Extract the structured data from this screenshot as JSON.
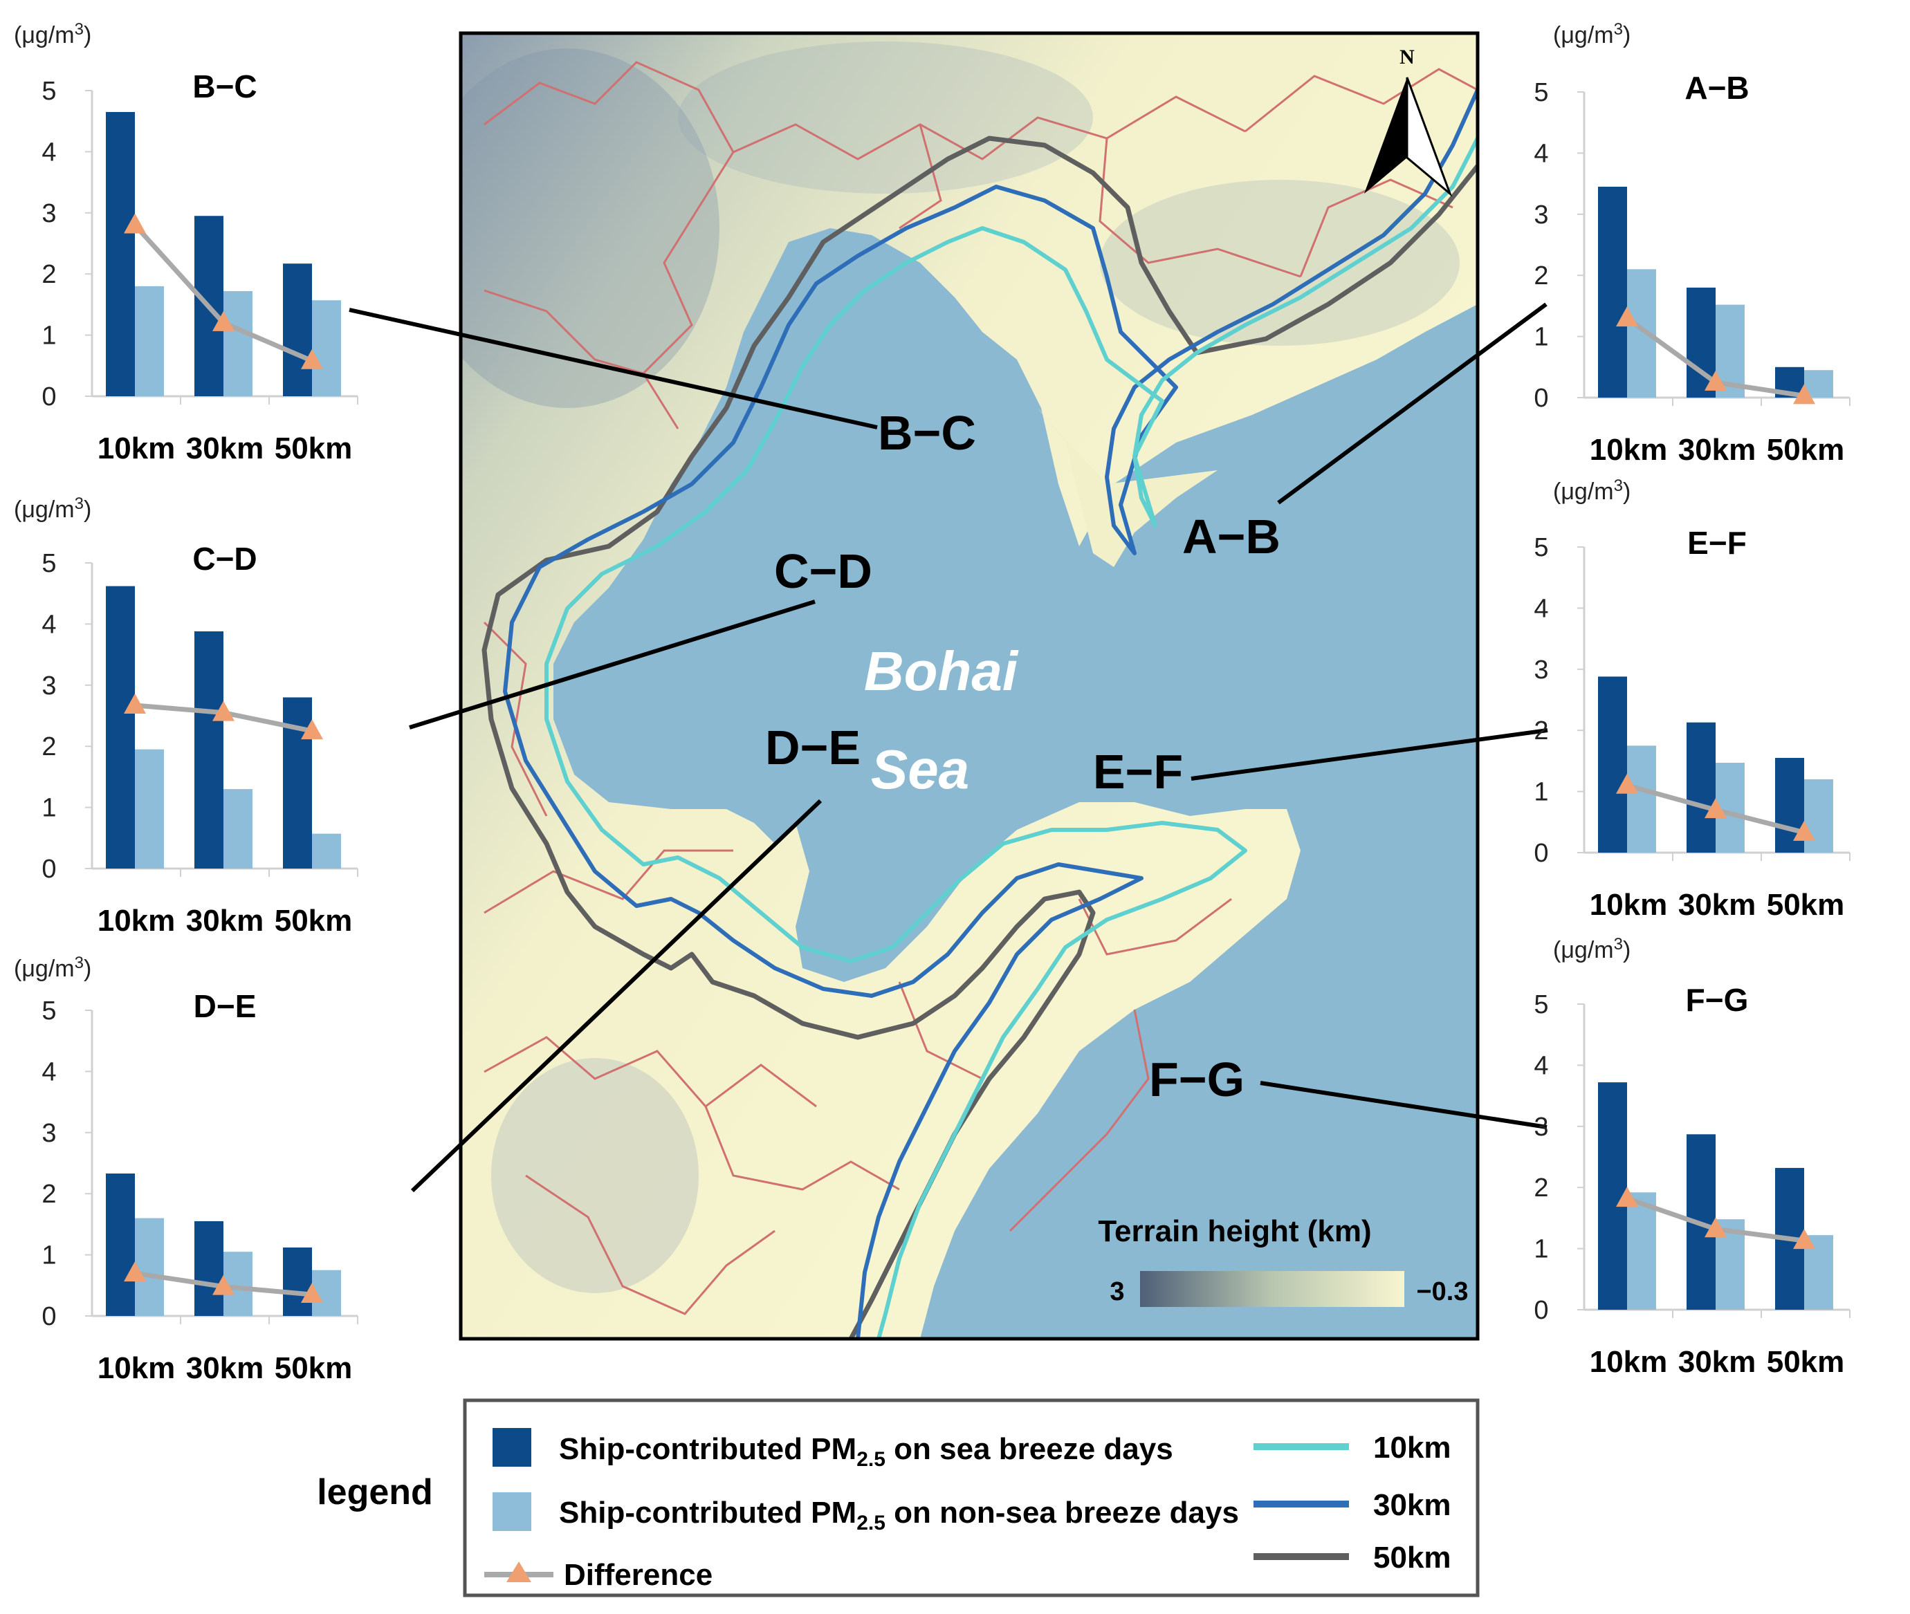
{
  "colors": {
    "sea_breeze": "#0c4a8a",
    "non_sea_breeze": "#8dbdd8",
    "difference_line": "#a9a9a9",
    "difference_marker": "#f0a070",
    "ring_10km": "#5fd0d0",
    "ring_30km": "#2e6eb8",
    "ring_50km": "#5f5f5f",
    "sea": "#8bb9d2",
    "land": "#f7f5cf",
    "boundary": "#d07070"
  },
  "map": {
    "sea_name_line1": "Bohai",
    "sea_name_line2": "Sea",
    "north_label": "N",
    "terrain_title": "Terrain height (km)",
    "terrain_max": "3",
    "terrain_min": "−0.3",
    "segment_labels": {
      "a_b": "A−B",
      "b_c": "B−C",
      "c_d": "C−D",
      "d_e": "D−E",
      "e_f": "E−F",
      "f_g": "F−G"
    }
  },
  "legend": {
    "title": "legend",
    "sea_breeze_pre": "Ship-contributed PM",
    "sea_breeze_sub": "2.5",
    "sea_breeze_post": " on sea breeze days",
    "non_sea_breeze_pre": "Ship-contributed PM",
    "non_sea_breeze_sub": "2.5",
    "non_sea_breeze_post": " on non-sea breeze days",
    "difference": "Difference",
    "ring_10km": "10km",
    "ring_30km": "30km",
    "ring_50km": "50km"
  },
  "chart_data": [
    {
      "type": "bar",
      "title": "B−C",
      "unit_pre": "(μg/m",
      "unit_sup": "3",
      "unit_post": ")",
      "categories": [
        "10km",
        "30km",
        "50km"
      ],
      "ylim": [
        0,
        5
      ],
      "yticks": [
        0,
        1,
        2,
        3,
        4,
        5
      ],
      "series": [
        {
          "name": "Ship-contributed PM2.5 on sea breeze days",
          "values": [
            4.65,
            2.95,
            2.17
          ]
        },
        {
          "name": "Ship-contributed PM2.5 on non-sea breeze days",
          "values": [
            1.8,
            1.72,
            1.57
          ]
        },
        {
          "name": "Difference",
          "type": "line",
          "values": [
            2.8,
            1.2,
            0.58
          ]
        }
      ]
    },
    {
      "type": "bar",
      "title": "C−D",
      "unit_pre": "(μg/m",
      "unit_sup": "3",
      "unit_post": ")",
      "categories": [
        "10km",
        "30km",
        "50km"
      ],
      "ylim": [
        0,
        5
      ],
      "yticks": [
        0,
        1,
        2,
        3,
        4,
        5
      ],
      "series": [
        {
          "name": "Ship-contributed PM2.5 on sea breeze days",
          "values": [
            4.62,
            3.88,
            2.8
          ]
        },
        {
          "name": "Ship-contributed PM2.5 on non-sea breeze days",
          "values": [
            1.95,
            1.3,
            0.57
          ]
        },
        {
          "name": "Difference",
          "type": "line",
          "values": [
            2.67,
            2.55,
            2.25
          ]
        }
      ]
    },
    {
      "type": "bar",
      "title": "D−E",
      "unit_pre": "(μg/m",
      "unit_sup": "3",
      "unit_post": ")",
      "categories": [
        "10km",
        "30km",
        "50km"
      ],
      "ylim": [
        0,
        5
      ],
      "yticks": [
        0,
        1,
        2,
        3,
        4,
        5
      ],
      "series": [
        {
          "name": "Ship-contributed PM2.5 on sea breeze days",
          "values": [
            2.33,
            1.55,
            1.12
          ]
        },
        {
          "name": "Ship-contributed PM2.5 on non-sea breeze days",
          "values": [
            1.6,
            1.05,
            0.75
          ]
        },
        {
          "name": "Difference",
          "type": "line",
          "values": [
            0.7,
            0.48,
            0.35
          ]
        }
      ]
    },
    {
      "type": "bar",
      "title": "A−B",
      "unit_pre": "(μg/m",
      "unit_sup": "3",
      "unit_post": ")",
      "categories": [
        "10km",
        "30km",
        "50km"
      ],
      "ylim": [
        0,
        5
      ],
      "yticks": [
        0,
        1,
        2,
        3,
        4,
        5
      ],
      "series": [
        {
          "name": "Ship-contributed PM2.5 on sea breeze days",
          "values": [
            3.45,
            1.8,
            0.5
          ]
        },
        {
          "name": "Ship-contributed PM2.5 on non-sea breeze days",
          "values": [
            2.1,
            1.52,
            0.45
          ]
        },
        {
          "name": "Difference",
          "type": "line",
          "values": [
            1.3,
            0.25,
            0.03
          ]
        }
      ]
    },
    {
      "type": "bar",
      "title": "E−F",
      "unit_pre": "(μg/m",
      "unit_sup": "3",
      "unit_post": ")",
      "categories": [
        "10km",
        "30km",
        "50km"
      ],
      "ylim": [
        0,
        5
      ],
      "yticks": [
        0,
        1,
        2,
        3,
        4,
        5
      ],
      "series": [
        {
          "name": "Ship-contributed PM2.5 on sea breeze days",
          "values": [
            2.88,
            2.13,
            1.55
          ]
        },
        {
          "name": "Ship-contributed PM2.5 on non-sea breeze days",
          "values": [
            1.75,
            1.47,
            1.2
          ]
        },
        {
          "name": "Difference",
          "type": "line",
          "values": [
            1.1,
            0.7,
            0.33
          ]
        }
      ]
    },
    {
      "type": "bar",
      "title": "F−G",
      "unit_pre": "(μg/m",
      "unit_sup": "3",
      "unit_post": ")",
      "categories": [
        "10km",
        "30km",
        "50km"
      ],
      "ylim": [
        0,
        5
      ],
      "yticks": [
        0,
        1,
        2,
        3,
        4,
        5
      ],
      "series": [
        {
          "name": "Ship-contributed PM2.5 on sea breeze days",
          "values": [
            3.72,
            2.87,
            2.32
          ]
        },
        {
          "name": "Ship-contributed PM2.5 on non-sea breeze days",
          "values": [
            1.92,
            1.48,
            1.22
          ]
        },
        {
          "name": "Difference",
          "type": "line",
          "values": [
            1.82,
            1.32,
            1.13
          ]
        }
      ]
    }
  ]
}
